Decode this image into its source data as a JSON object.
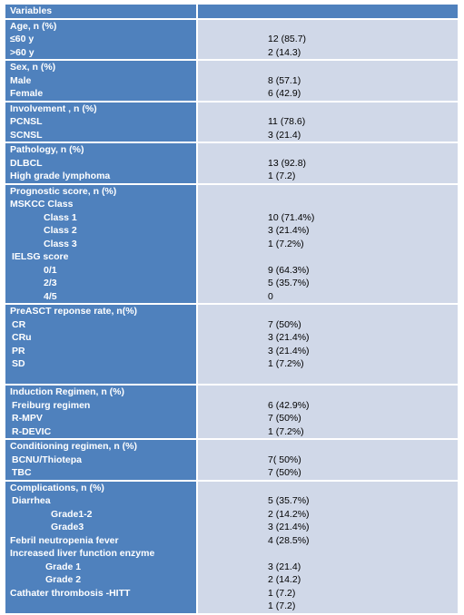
{
  "header": {
    "label": "Variables",
    "value": ""
  },
  "sections": [
    {
      "title": "Age, n (%)",
      "rows": [
        {
          "label": "≤60 y",
          "value": "12 (85.7)",
          "indent": 0
        },
        {
          "label": ">60 y",
          "value": "2 (14.3)",
          "indent": 0
        }
      ]
    },
    {
      "title": "Sex, n (%)",
      "rows": [
        {
          "label": "Male",
          "value": "8 (57.1)",
          "indent": 0
        },
        {
          "label": "Female",
          "value": "6 (42.9)",
          "indent": 0
        }
      ]
    },
    {
      "title": "Involvement , n (%)",
      "rows": [
        {
          "label": "PCNSL",
          "value": "11 (78.6)",
          "indent": 0
        },
        {
          "label": "SCNSL",
          "value": "3 (21.4)",
          "indent": 0
        }
      ]
    },
    {
      "title": "Pathology, n (%)",
      "rows": [
        {
          "label": "DLBCL",
          "value": "13 (92.8)",
          "indent": 0
        },
        {
          "label": "High grade lymphoma",
          "value": "1 (7.2)",
          "indent": 0
        }
      ]
    },
    {
      "title": "Prognostic score, n (%)",
      "rows": [
        {
          "label": "MSKCC Class",
          "value": "",
          "indent": 0
        },
        {
          "label": "Class 1",
          "value": "10 (71.4%)",
          "indent": 2
        },
        {
          "label": "Class 2",
          "value": "3 (21.4%)",
          "indent": 2
        },
        {
          "label": "Class 3",
          "value": "1 (7.2%)",
          "indent": 2
        },
        {
          "label": "IELSG score",
          "value": "",
          "indent": 1
        },
        {
          "label": "0/1",
          "value": "9 (64.3%)",
          "indent": 2
        },
        {
          "label": "2/3",
          "value": "5 (35.7%)",
          "indent": 2
        },
        {
          "label": "4/5",
          "value": "0",
          "indent": 2
        }
      ]
    },
    {
      "title": "PreASCT reponse rate, n(%)",
      "rows": [
        {
          "label": "CR",
          "value": "7 (50%)",
          "indent": 1
        },
        {
          "label": "CRu",
          "value": "3 (21.4%)",
          "indent": 1
        },
        {
          "label": "PR",
          "value": "3 (21.4%)",
          "indent": 1
        },
        {
          "label": "SD",
          "value": "1 (7.2%)",
          "indent": 1
        },
        {
          "label": "",
          "value": "",
          "indent": 0
        }
      ]
    },
    {
      "title": "Induction Regimen, n (%)",
      "rows": [
        {
          "label": "Freiburg regimen",
          "value": "6 (42.9%)",
          "indent": 1
        },
        {
          "label": "R-MPV",
          "value": "7 (50%)",
          "indent": 1
        },
        {
          "label": "R-DEVIC",
          "value": "1 (7.2%)",
          "indent": 1
        }
      ]
    },
    {
      "title": "Conditioning regimen, n (%)",
      "rows": [
        {
          "label": "BCNU/Thiotepa",
          "value": "7( 50%)",
          "indent": 1
        },
        {
          "label": "TBC",
          "value": "7 (50%)",
          "indent": 1
        }
      ]
    },
    {
      "title": "Complications, n (%)",
      "rows": [
        {
          "label": "Diarrhea",
          "value": "5 (35.7%)",
          "indent": 1
        },
        {
          "label": "Grade1-2",
          "value": "2 (14.2%)",
          "indent": 4
        },
        {
          "label": "Grade3",
          "value": "3 (21.4%)",
          "indent": 4
        },
        {
          "label": "Febril neutropenia fever",
          "value": "4 (28.5%)",
          "indent": 0
        },
        {
          "label": "Increased liver function enzyme",
          "value": "",
          "indent": 0
        },
        {
          "label": "Grade 1",
          "value": "3 (21.4)",
          "indent": 3
        },
        {
          "label": "Grade 2",
          "value": "2 (14.2)",
          "indent": 3
        },
        {
          "label": "Cathater thrombosis -HITT",
          "value": "1 (7.2)",
          "indent": 0
        },
        {
          "label": "",
          "value": "1 (7.2)",
          "indent": 0
        }
      ]
    }
  ]
}
